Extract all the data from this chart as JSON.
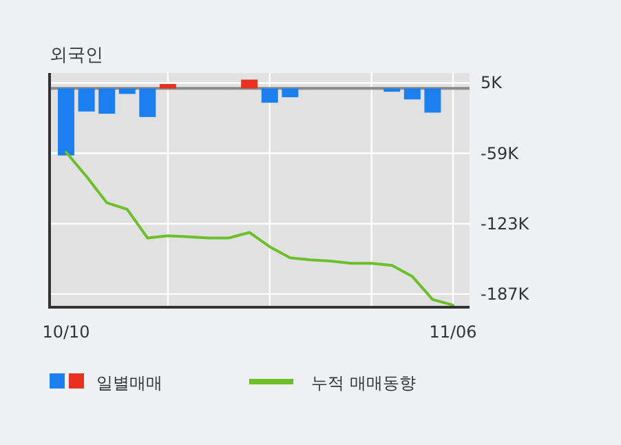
{
  "chart_data": {
    "type": "bar",
    "title": "외국인",
    "categories": [
      "10/10",
      null,
      null,
      null,
      null,
      null,
      null,
      null,
      null,
      null,
      null,
      null,
      null,
      null,
      null,
      null,
      null,
      null,
      null,
      "11/06"
    ],
    "series": [
      {
        "name": "일별매매",
        "values": [
          -61,
          -21,
          -23,
          -5,
          -26,
          4,
          null,
          null,
          null,
          8,
          -13,
          -8,
          null,
          null,
          null,
          null,
          -3,
          -10,
          -22,
          null
        ],
        "colors": [
          "#1b7ff0",
          "#1b7ff0",
          "#1b7ff0",
          "#1b7ff0",
          "#1b7ff0",
          "#e83020",
          null,
          null,
          null,
          "#e83020",
          "#1b7ff0",
          "#1b7ff0",
          null,
          null,
          null,
          null,
          "#1b7ff0",
          "#1b7ff0",
          "#1b7ff0",
          null
        ]
      },
      {
        "name": "누적 매매동향",
        "type": "line",
        "color": "#6cbf2a",
        "values": [
          -58,
          -80,
          -104,
          -110,
          -136,
          -134,
          -135,
          -136,
          -136,
          -131,
          -144,
          -154,
          -156,
          -157,
          -159,
          -159,
          -161,
          -171,
          -192,
          -197
        ]
      }
    ],
    "ylim": [
      -199,
      14
    ],
    "yticks": [
      {
        "value": 5,
        "label": "5K"
      },
      {
        "value": -59,
        "label": "-59K"
      },
      {
        "value": -123,
        "label": "-123K"
      },
      {
        "value": -187,
        "label": "-187K"
      }
    ],
    "ref_lines": [
      {
        "axis": "y",
        "value": 0,
        "color": "#8a8a8a"
      }
    ],
    "grid": true,
    "legend": "bottom"
  }
}
